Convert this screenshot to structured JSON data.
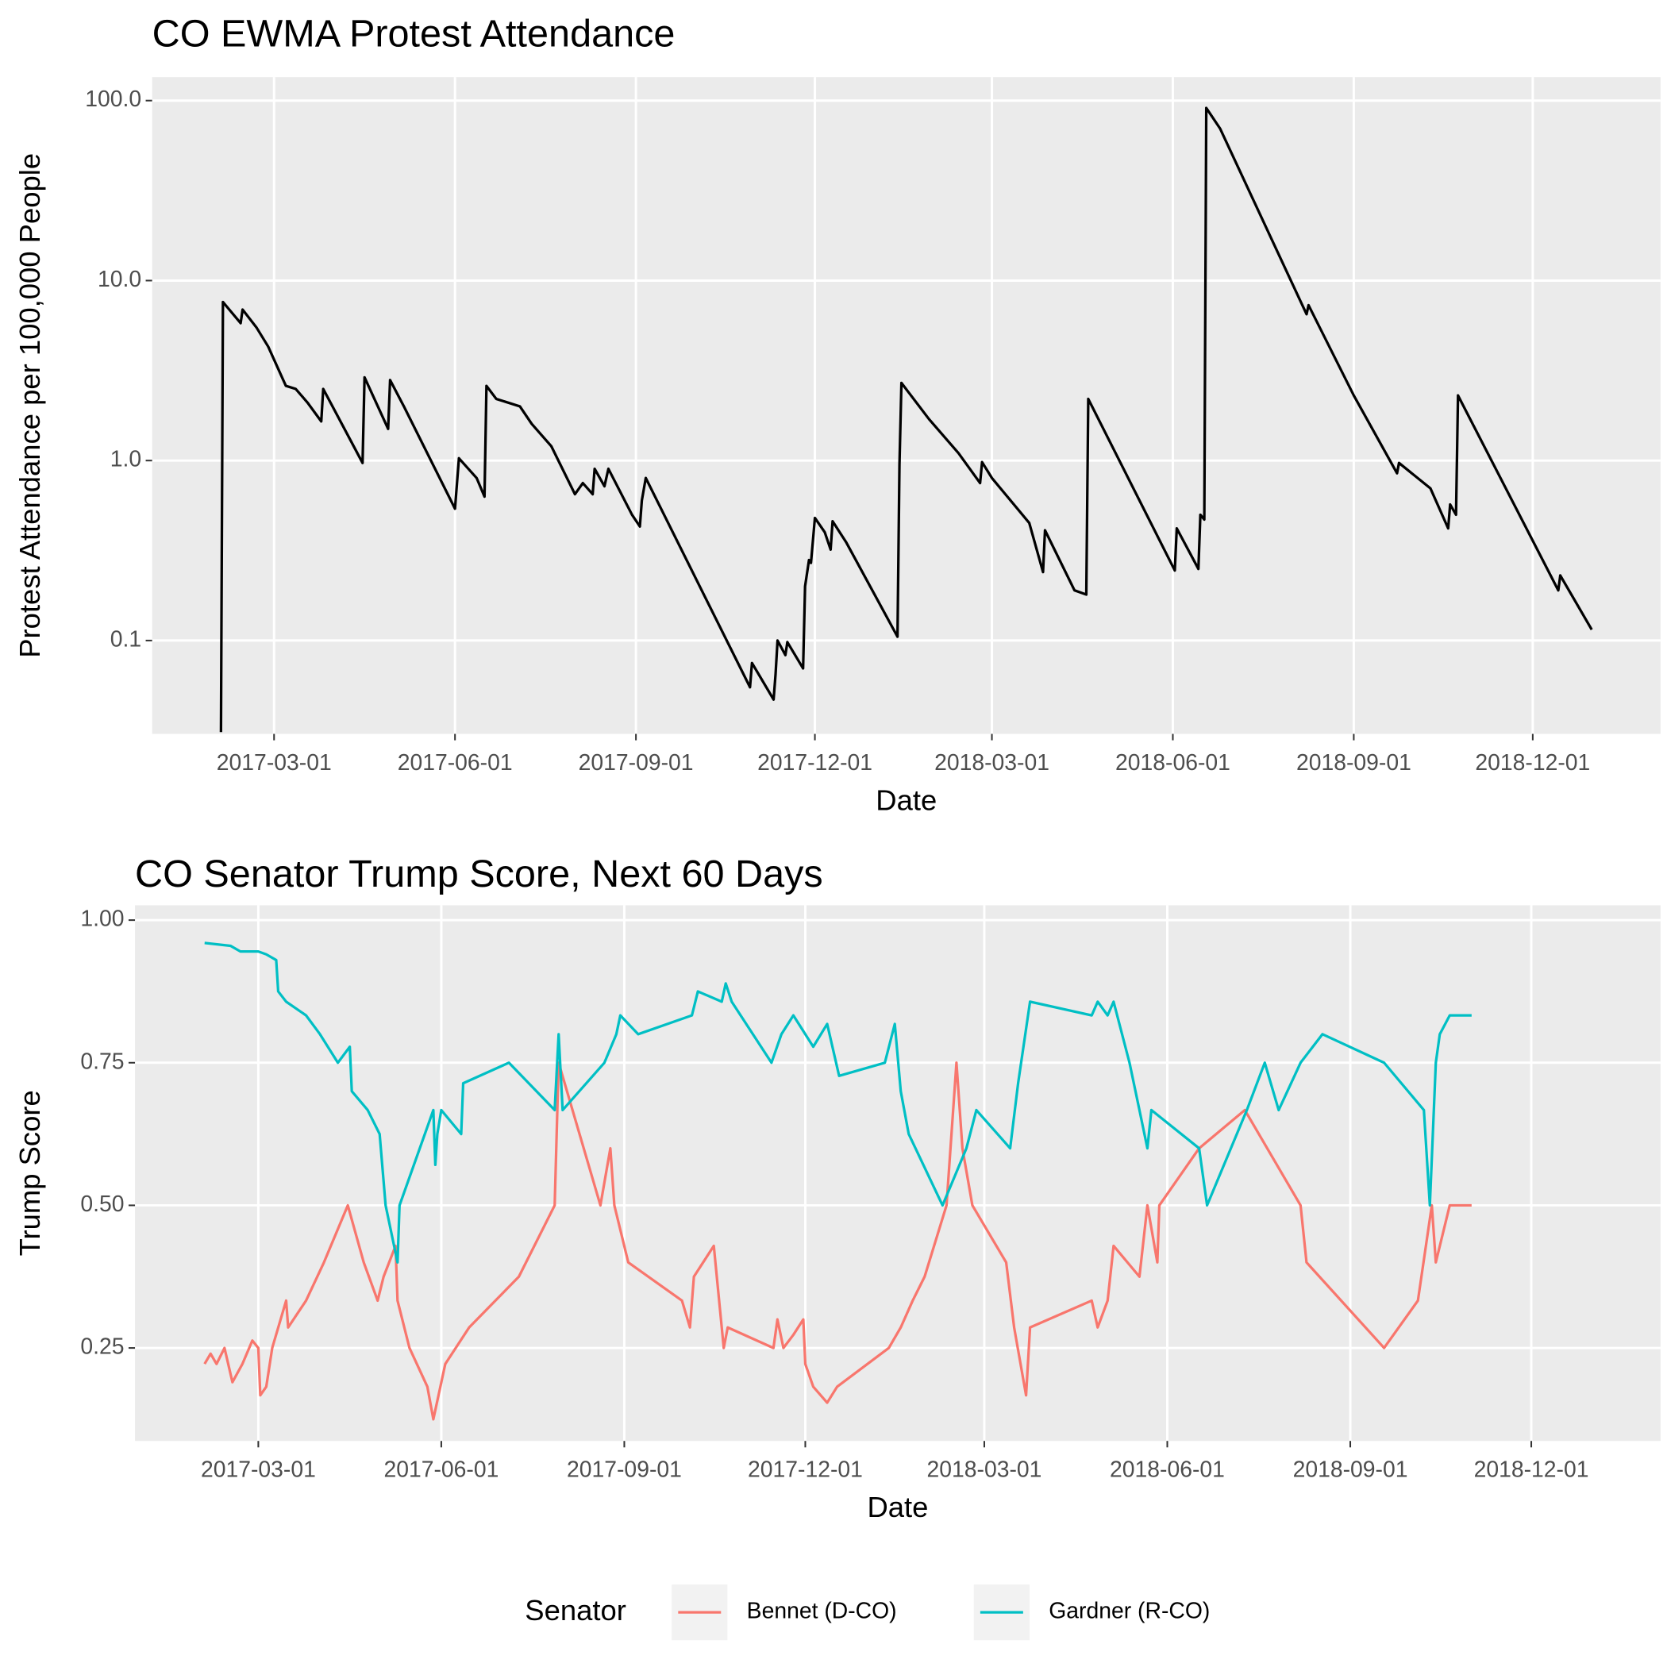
{
  "chart_data": [
    {
      "type": "line",
      "title": "CO EWMA Protest Attendance",
      "x_label": "Date",
      "y_label": "Protest Attendance per 100,000 People",
      "log_scale": true,
      "grid": true,
      "color": "#000000",
      "xlim": [
        "2016-12-29",
        "2019-02-04"
      ],
      "xticks": [
        "2017-03-01",
        "2017-06-01",
        "2017-09-01",
        "2017-12-01",
        "2018-03-01",
        "2018-06-01",
        "2018-09-01",
        "2018-12-01"
      ],
      "ylim": [
        0.0303,
        135
      ],
      "yticks": [
        {
          "value": 100,
          "label": "100.0"
        },
        {
          "value": 10,
          "label": "10.0"
        },
        {
          "value": 1,
          "label": "1.0"
        },
        0.1
      ],
      "x": [
        "2017-02-02",
        "2017-02-03",
        "2017-02-12",
        "2017-02-13",
        "2017-02-20",
        "2017-02-26",
        "2017-03-07",
        "2017-03-12",
        "2017-03-18",
        "2017-03-25",
        "2017-03-26",
        "2017-04-15",
        "2017-04-16",
        "2017-04-28",
        "2017-04-29",
        "2017-05-06",
        "2017-06-01",
        "2017-06-03",
        "2017-06-12",
        "2017-06-16",
        "2017-06-17",
        "2017-06-22",
        "2017-07-04",
        "2017-07-10",
        "2017-07-20",
        "2017-08-01",
        "2017-08-05",
        "2017-08-10",
        "2017-08-11",
        "2017-08-16",
        "2017-08-18",
        "2017-08-30",
        "2017-09-03",
        "2017-09-04",
        "2017-09-06",
        "2017-10-29",
        "2017-10-30",
        "2017-11-10",
        "2017-11-11",
        "2017-11-12",
        "2017-11-16",
        "2017-11-17",
        "2017-11-25",
        "2017-11-26",
        "2017-11-28",
        "2017-11-29",
        "2017-12-01",
        "2017-12-06",
        "2017-12-09",
        "2017-12-10",
        "2017-12-17",
        "2018-01-12",
        "2018-01-13",
        "2018-01-14",
        "2018-01-28",
        "2018-02-12",
        "2018-02-23",
        "2018-02-24",
        "2018-03-01",
        "2018-03-20",
        "2018-03-27",
        "2018-03-28",
        "2018-04-12",
        "2018-04-18",
        "2018-04-19",
        "2018-06-02",
        "2018-06-03",
        "2018-06-14",
        "2018-06-15",
        "2018-06-17",
        "2018-06-18",
        "2018-06-25",
        "2018-08-08",
        "2018-08-09",
        "2018-09-01",
        "2018-09-23",
        "2018-09-24",
        "2018-10-10",
        "2018-10-19",
        "2018-10-20",
        "2018-10-23",
        "2018-10-24",
        "2018-12-14",
        "2018-12-15",
        "2018-12-31"
      ],
      "values": [
        0.031,
        7.6,
        5.8,
        6.9,
        5.5,
        4.3,
        2.6,
        2.5,
        2.1,
        1.65,
        2.5,
        0.97,
        2.9,
        1.5,
        2.8,
        2.0,
        0.54,
        1.03,
        0.8,
        0.63,
        2.6,
        2.2,
        2.0,
        1.6,
        1.2,
        0.65,
        0.75,
        0.65,
        0.9,
        0.72,
        0.9,
        0.5,
        0.43,
        0.6,
        0.8,
        0.055,
        0.075,
        0.047,
        0.065,
        0.1,
        0.083,
        0.098,
        0.07,
        0.2,
        0.28,
        0.27,
        0.48,
        0.4,
        0.32,
        0.46,
        0.35,
        0.105,
        0.95,
        2.7,
        1.7,
        1.1,
        0.75,
        0.98,
        0.8,
        0.45,
        0.24,
        0.41,
        0.19,
        0.18,
        2.2,
        0.245,
        0.42,
        0.25,
        0.5,
        0.47,
        91,
        70,
        6.5,
        7.3,
        2.3,
        0.85,
        0.97,
        0.7,
        0.42,
        0.57,
        0.5,
        2.3,
        0.19,
        0.23,
        0.115
      ]
    },
    {
      "type": "line",
      "title": "CO Senator Trump Score, Next 60 Days",
      "x_label": "Date",
      "y_label": "Trump Score",
      "grid": true,
      "legend_title": "Senator",
      "legend_position": "bottom",
      "xlim": [
        "2016-12-29",
        "2019-02-04"
      ],
      "xticks": [
        "2017-03-01",
        "2017-06-01",
        "2017-09-01",
        "2017-12-01",
        "2018-03-01",
        "2018-06-01",
        "2018-09-01",
        "2018-12-01"
      ],
      "ylim": [
        0.087,
        1.026
      ],
      "yticks": [
        {
          "value": 1,
          "label": "1.00"
        },
        {
          "value": 0.75,
          "label": "0.75"
        },
        {
          "value": 0.5,
          "label": "0.50"
        },
        {
          "value": 0.25,
          "label": "0.25"
        }
      ],
      "series": [
        {
          "name": "Bennet (D-CO)",
          "color": "#F8766D",
          "x": [
            "2017-02-02",
            "2017-02-05",
            "2017-02-08",
            "2017-02-12",
            "2017-02-16",
            "2017-02-21",
            "2017-02-26",
            "2017-03-01",
            "2017-03-02",
            "2017-03-05",
            "2017-03-08",
            "2017-03-15",
            "2017-03-16",
            "2017-03-25",
            "2017-04-03",
            "2017-04-15",
            "2017-04-23",
            "2017-04-30",
            "2017-05-03",
            "2017-05-09",
            "2017-05-10",
            "2017-05-16",
            "2017-05-25",
            "2017-05-28",
            "2017-06-03",
            "2017-06-15",
            "2017-07-10",
            "2017-07-28",
            "2017-07-30",
            "2017-08-20",
            "2017-08-25",
            "2017-08-27",
            "2017-09-03",
            "2017-09-30",
            "2017-10-04",
            "2017-10-06",
            "2017-10-16",
            "2017-10-21",
            "2017-10-23",
            "2017-11-15",
            "2017-11-17",
            "2017-11-20",
            "2017-11-25",
            "2017-11-30",
            "2017-12-01",
            "2017-12-05",
            "2017-12-12",
            "2017-12-17",
            "2018-01-12",
            "2018-01-18",
            "2018-01-24",
            "2018-01-30",
            "2018-02-10",
            "2018-02-15",
            "2018-02-18",
            "2018-02-23",
            "2018-03-12",
            "2018-03-16",
            "2018-03-22",
            "2018-03-24",
            "2018-04-24",
            "2018-04-27",
            "2018-05-02",
            "2018-05-05",
            "2018-05-18",
            "2018-05-22",
            "2018-05-27",
            "2018-05-28",
            "2018-06-17",
            "2018-07-10",
            "2018-08-07",
            "2018-08-10",
            "2018-09-18",
            "2018-10-05",
            "2018-10-12",
            "2018-10-14",
            "2018-10-21",
            "2018-11-01"
          ],
          "values": [
            0.222,
            0.24,
            0.222,
            0.25,
            0.19,
            0.222,
            0.263,
            0.25,
            0.167,
            0.182,
            0.25,
            0.333,
            0.286,
            0.333,
            0.4,
            0.5,
            0.4,
            0.333,
            0.375,
            0.429,
            0.333,
            0.25,
            0.182,
            0.125,
            0.222,
            0.286,
            0.375,
            0.5,
            0.75,
            0.5,
            0.6,
            0.5,
            0.4,
            0.333,
            0.286,
            0.375,
            0.429,
            0.25,
            0.286,
            0.25,
            0.3,
            0.25,
            0.273,
            0.3,
            0.222,
            0.182,
            0.154,
            0.182,
            0.25,
            0.286,
            0.333,
            0.375,
            0.5,
            0.75,
            0.6,
            0.5,
            0.4,
            0.286,
            0.167,
            0.286,
            0.333,
            0.286,
            0.333,
            0.429,
            0.375,
            0.5,
            0.4,
            0.5,
            0.6,
            0.667,
            0.5,
            0.4,
            0.25,
            0.333,
            0.5,
            0.4,
            0.5,
            0.5
          ]
        },
        {
          "name": "Gardner (R-CO)",
          "color": "#00BFC4",
          "x": [
            "2017-02-02",
            "2017-02-15",
            "2017-02-20",
            "2017-03-01",
            "2017-03-05",
            "2017-03-10",
            "2017-03-11",
            "2017-03-15",
            "2017-03-25",
            "2017-04-01",
            "2017-04-10",
            "2017-04-16",
            "2017-04-17",
            "2017-04-25",
            "2017-05-01",
            "2017-05-04",
            "2017-05-10",
            "2017-05-11",
            "2017-05-28",
            "2017-05-29",
            "2017-05-30",
            "2017-06-01",
            "2017-06-11",
            "2017-06-12",
            "2017-07-05",
            "2017-07-28",
            "2017-07-30",
            "2017-08-01",
            "2017-08-22",
            "2017-08-28",
            "2017-08-30",
            "2017-09-08",
            "2017-10-05",
            "2017-10-08",
            "2017-10-20",
            "2017-10-22",
            "2017-10-25",
            "2017-11-14",
            "2017-11-19",
            "2017-11-25",
            "2017-12-05",
            "2017-12-12",
            "2017-12-18",
            "2018-01-10",
            "2018-01-15",
            "2018-01-18",
            "2018-01-22",
            "2018-02-08",
            "2018-02-20",
            "2018-02-25",
            "2018-03-14",
            "2018-03-18",
            "2018-03-24",
            "2018-04-24",
            "2018-04-27",
            "2018-05-02",
            "2018-05-05",
            "2018-05-13",
            "2018-05-18",
            "2018-05-22",
            "2018-05-24",
            "2018-06-17",
            "2018-06-21",
            "2018-07-11",
            "2018-07-20",
            "2018-07-27",
            "2018-08-07",
            "2018-08-18",
            "2018-09-18",
            "2018-10-08",
            "2018-10-11",
            "2018-10-14",
            "2018-10-16",
            "2018-10-21",
            "2018-11-01"
          ],
          "values": [
            0.96,
            0.955,
            0.945,
            0.945,
            0.94,
            0.93,
            0.875,
            0.857,
            0.833,
            0.8,
            0.75,
            0.778,
            0.7,
            0.667,
            0.625,
            0.5,
            0.4,
            0.5,
            0.667,
            0.571,
            0.625,
            0.667,
            0.625,
            0.714,
            0.75,
            0.667,
            0.8,
            0.667,
            0.75,
            0.8,
            0.833,
            0.8,
            0.833,
            0.875,
            0.857,
            0.889,
            0.857,
            0.75,
            0.8,
            0.833,
            0.778,
            0.818,
            0.727,
            0.75,
            0.818,
            0.7,
            0.625,
            0.5,
            0.6,
            0.667,
            0.6,
            0.714,
            0.857,
            0.833,
            0.857,
            0.833,
            0.857,
            0.75,
            0.667,
            0.6,
            0.667,
            0.6,
            0.5,
            0.667,
            0.75,
            0.667,
            0.75,
            0.8,
            0.75,
            0.667,
            0.5,
            0.75,
            0.8,
            0.833,
            0.833
          ]
        }
      ]
    }
  ]
}
